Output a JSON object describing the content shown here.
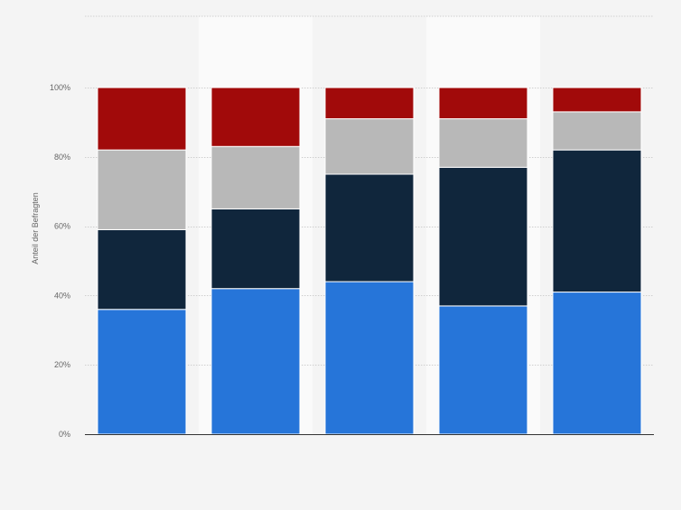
{
  "chart_data": {
    "type": "bar",
    "stacked": true,
    "categories": [
      "",
      "",
      "",
      "",
      ""
    ],
    "ylabel": "Anteil der Befragten",
    "ylim": [
      0,
      100
    ],
    "yticks": [
      0,
      20,
      40,
      60,
      80,
      100
    ],
    "ytick_labels": [
      "0%",
      "20%",
      "40%",
      "60%",
      "80%",
      "100%"
    ],
    "grid": true,
    "series": [
      {
        "color": "#2675d9",
        "values": [
          36,
          42,
          44,
          37,
          41
        ]
      },
      {
        "color": "#10263c",
        "values": [
          23,
          23,
          31,
          40,
          41
        ]
      },
      {
        "color": "#b8b8b8",
        "values": [
          23,
          18,
          16,
          14,
          11
        ]
      },
      {
        "color": "#a10a0a",
        "values": [
          18,
          17,
          9,
          9,
          7
        ]
      }
    ]
  }
}
